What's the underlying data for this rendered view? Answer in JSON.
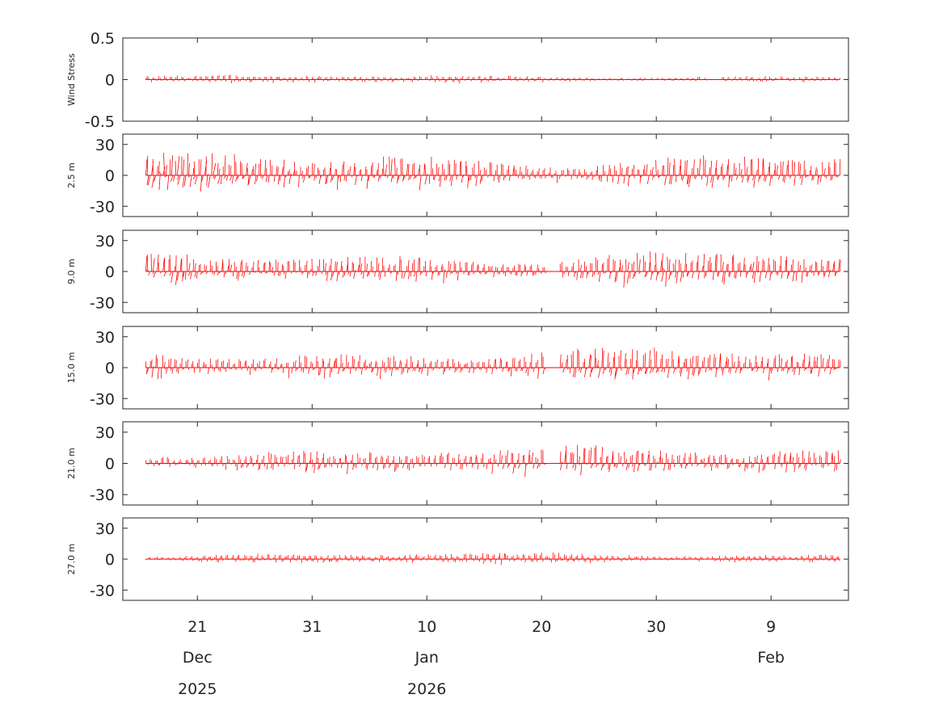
{
  "chart_data": {
    "type": "quiver",
    "time_axis": {
      "xlim": [
        "2025-12-14T12:00",
        "2026-02-15T18:00"
      ],
      "ticks": [
        {
          "date": "2025-12-21",
          "day": "21",
          "month": "Dec",
          "year": "2025"
        },
        {
          "date": "2025-12-31",
          "day": "31",
          "month": "",
          "year": ""
        },
        {
          "date": "2026-01-10",
          "day": "10",
          "month": "Jan",
          "year": "2026"
        },
        {
          "date": "2026-01-20",
          "day": "20",
          "month": "",
          "year": ""
        },
        {
          "date": "2026-01-30",
          "day": "30",
          "month": "",
          "year": ""
        },
        {
          "date": "2026-02-09",
          "day": "9",
          "month": "Feb",
          "year": ""
        }
      ],
      "data_start": "2025-12-16T12:00",
      "data_end": "2026-02-15T00:00"
    },
    "color": "#ff0000",
    "panels": [
      {
        "ylabel": "Wind Stress",
        "ylim": [
          -0.5,
          0.5
        ],
        "yticks": [
          0.5,
          0,
          -0.5
        ],
        "ytick_labels": [
          "0.5",
          "0",
          "-0.5"
        ],
        "amplitude": 0.045,
        "gaps": [
          [
            "2026-02-03T12:00",
            "2026-02-04T12:00"
          ]
        ]
      },
      {
        "ylabel": "2.5 m",
        "ylim": [
          -40,
          40
        ],
        "yticks": [
          30,
          0,
          -30
        ],
        "ytick_labels": [
          "30",
          "0",
          "-30"
        ],
        "amplitude": 18,
        "gaps": []
      },
      {
        "ylabel": "9.0 m",
        "ylim": [
          -40,
          40
        ],
        "yticks": [
          30,
          0,
          -30
        ],
        "ytick_labels": [
          "30",
          "0",
          "-30"
        ],
        "amplitude": 16,
        "gaps": [
          [
            "2026-01-20T12:00",
            "2026-01-21T12:00"
          ]
        ]
      },
      {
        "ylabel": "15.0 m",
        "ylim": [
          -40,
          40
        ],
        "yticks": [
          30,
          0,
          -30
        ],
        "ytick_labels": [
          "30",
          "0",
          "-30"
        ],
        "amplitude": 15,
        "gaps": [
          [
            "2026-01-20T12:00",
            "2026-01-21T12:00"
          ]
        ]
      },
      {
        "ylabel": "21.0 m",
        "ylim": [
          -40,
          40
        ],
        "yticks": [
          30,
          0,
          -30
        ],
        "ytick_labels": [
          "30",
          "0",
          "-30"
        ],
        "amplitude": 13,
        "gaps": [
          [
            "2026-01-20T12:00",
            "2026-01-21T12:00"
          ]
        ]
      },
      {
        "ylabel": "27.0 m",
        "ylim": [
          -40,
          40
        ],
        "yticks": [
          30,
          0,
          -30
        ],
        "ytick_labels": [
          "30",
          "0",
          "-30"
        ],
        "amplitude": 5,
        "gaps": []
      }
    ]
  }
}
